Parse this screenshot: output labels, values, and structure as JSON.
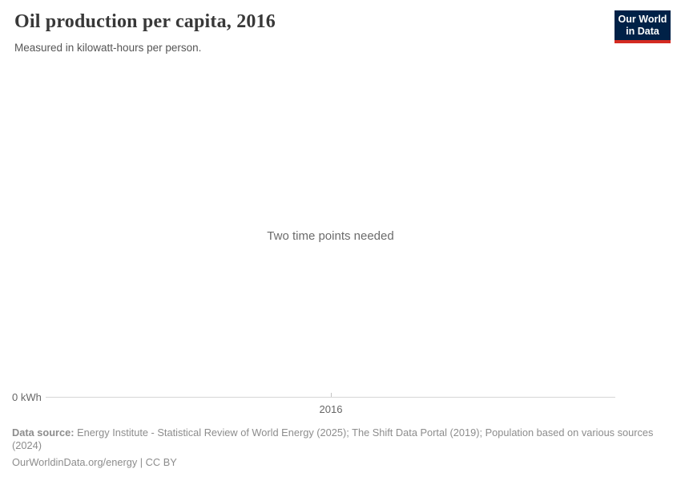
{
  "header": {
    "title": "Oil production per capita, 2016",
    "subtitle": "Measured in kilowatt-hours per person.",
    "logo": {
      "line1": "Our World",
      "line2": "in Data"
    }
  },
  "chart": {
    "message": "Two time points needed",
    "y_axis_tick": "0 kWh",
    "x_axis_tick": "2016"
  },
  "footer": {
    "datasource_label": "Data source:",
    "datasource_text": " Energy Institute - Statistical Review of World Energy (2025); The Shift Data Portal (2019); Population based on various sources (2024)",
    "license": "OurWorldinData.org/energy | CC BY"
  },
  "colors": {
    "logo_bg": "#002147",
    "logo_accent": "#d42b21",
    "axis_line": "#d6d6d6",
    "tick_label": "#666666",
    "footer_text": "#8d8d8d",
    "title_text": "#383838"
  },
  "chart_data": {
    "type": "line",
    "title": "Oil production per capita, 2016",
    "subtitle": "Measured in kilowatt-hours per person.",
    "series": [],
    "x_ticks": [
      "2016"
    ],
    "y_ticks": [
      "0 kWh"
    ],
    "annotations": [
      "Two time points needed"
    ],
    "grid": false,
    "legend": false
  }
}
